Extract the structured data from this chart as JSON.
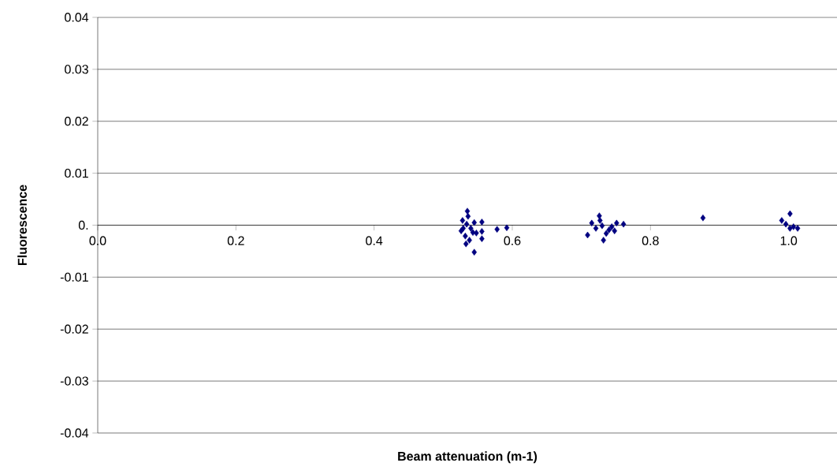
{
  "chart_data": {
    "type": "scatter",
    "xlabel": "Beam attenuation (m-1)",
    "ylabel": "Fluorescence",
    "x": [
      0.535,
      0.528,
      0.534,
      0.54,
      0.526,
      0.545,
      0.532,
      0.538,
      0.533,
      0.556,
      0.556,
      0.556,
      0.545,
      0.578,
      0.592,
      0.543,
      0.536,
      0.548,
      0.529,
      0.726,
      0.715,
      0.709,
      0.732,
      0.761,
      0.751,
      0.721,
      0.73,
      0.74,
      0.736,
      0.744,
      0.727,
      0.748,
      0.876,
      1.002,
      0.99,
      0.996,
      1.002,
      1.013,
      1.007
    ],
    "values": [
      0.0027,
      0.0009,
      0.0002,
      -0.0006,
      -0.0011,
      0.0005,
      -0.0021,
      -0.0029,
      -0.0036,
      0.0006,
      -0.0012,
      -0.0026,
      -0.0052,
      -0.0008,
      -0.0005,
      -0.0014,
      0.0017,
      -0.0015,
      -0.0006,
      0.0018,
      0.0004,
      -0.0019,
      -0.0029,
      0.0002,
      0.0004,
      -0.0006,
      -0.0001,
      -0.0009,
      -0.0016,
      -0.0003,
      0.0009,
      -0.0011,
      0.0014,
      0.0022,
      0.0009,
      0.0002,
      -0.0006,
      -0.0006,
      -0.0003
    ],
    "color": "#000080",
    "marker": "diamond",
    "grid": "y",
    "xlim": [
      0,
      1.07
    ],
    "ylim": [
      -0.04,
      0.04
    ],
    "xticks": [
      {
        "value": 0,
        "label": "0.0"
      },
      {
        "value": 0.2,
        "label": "0.2"
      },
      {
        "value": 0.4,
        "label": "0.4"
      },
      {
        "value": 0.6,
        "label": "0.6"
      },
      {
        "value": 0.8,
        "label": "0.8"
      },
      {
        "value": 1.0,
        "label": "1.0"
      }
    ],
    "yticks": [
      -0.04,
      -0.03,
      -0.02,
      -0.01,
      {
        "value": 0,
        "label": "0."
      },
      0.01,
      0.02,
      0.03,
      0.04
    ]
  }
}
